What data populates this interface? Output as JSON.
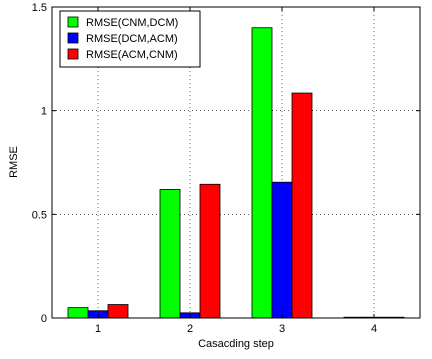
{
  "chart_data": {
    "type": "bar",
    "xlabel": "Casacding step",
    "ylabel": "RMSE",
    "categories": [
      "1",
      "2",
      "3",
      "4"
    ],
    "ylim": [
      0,
      1.5
    ],
    "yticks": [
      0,
      0.5,
      1,
      1.5
    ],
    "yticklabels": [
      "0",
      "0.5",
      "1",
      "1.5"
    ],
    "grid": true,
    "legend_position": "top-left",
    "series": [
      {
        "name": "RMSE(CNM,DCM)",
        "color": "#00ff00",
        "values": [
          0.05,
          0.62,
          1.4,
          0.0
        ]
      },
      {
        "name": "RMSE(DCM,ACM)",
        "color": "#0000ff",
        "values": [
          0.035,
          0.025,
          0.655,
          0.0
        ]
      },
      {
        "name": "RMSE(ACM,CNM)",
        "color": "#ff0000",
        "values": [
          0.065,
          0.645,
          1.085,
          0.0
        ]
      }
    ]
  }
}
